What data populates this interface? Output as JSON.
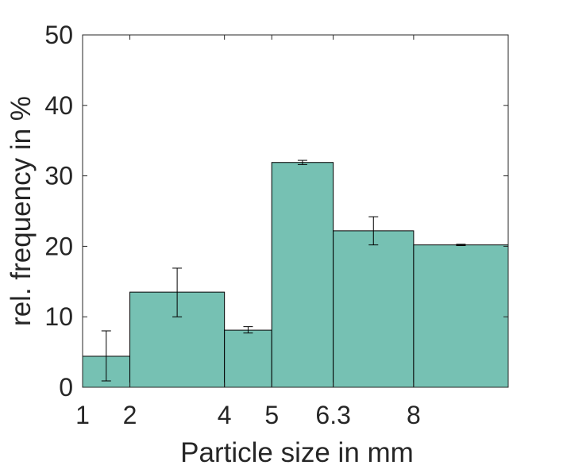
{
  "chart_data": {
    "type": "bar",
    "bin_edges": [
      1,
      2,
      4,
      5,
      6.3,
      8,
      10
    ],
    "x_tick_values": [
      1,
      2,
      4,
      5,
      6.3,
      8
    ],
    "x_tick_labels": [
      "1",
      "2",
      "4",
      "5",
      "6.3",
      "8"
    ],
    "values": [
      4.4,
      13.5,
      8.1,
      31.9,
      22.2,
      20.2
    ],
    "error_low": [
      0.9,
      10.0,
      7.7,
      31.6,
      20.2,
      20.1
    ],
    "error_high": [
      8.0,
      16.9,
      8.6,
      32.2,
      24.2,
      20.3
    ],
    "y_ticks": [
      0,
      10,
      20,
      30,
      40,
      50
    ],
    "xlabel": "Particle size in mm",
    "ylabel": "rel. frequency in %",
    "xlim": [
      1,
      10
    ],
    "ylim": [
      0,
      50
    ],
    "grid": false,
    "bar_color": "#76c1b3",
    "edge_color": "#000000",
    "axis_color": "#262626"
  }
}
